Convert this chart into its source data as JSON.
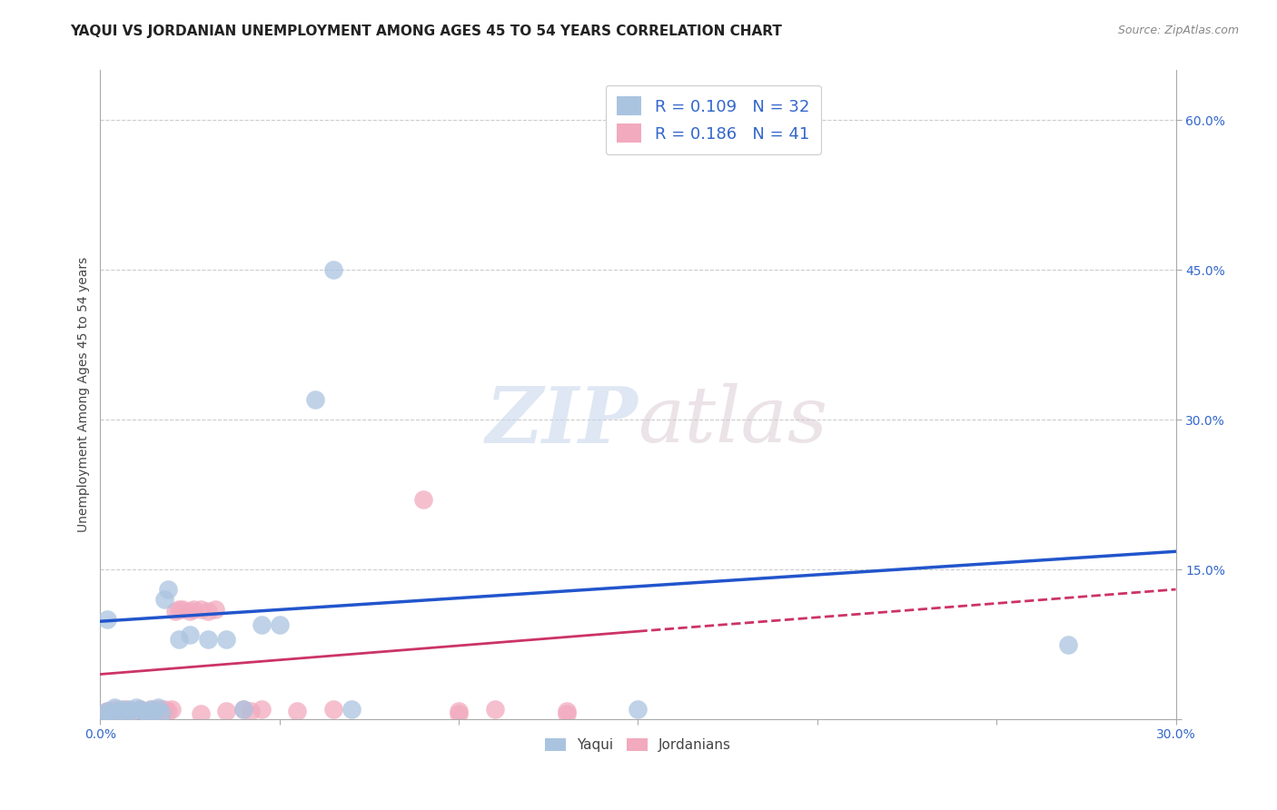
{
  "title": "YAQUI VS JORDANIAN UNEMPLOYMENT AMONG AGES 45 TO 54 YEARS CORRELATION CHART",
  "source": "Source: ZipAtlas.com",
  "ylabel": "Unemployment Among Ages 45 to 54 years",
  "xlim": [
    0.0,
    0.3
  ],
  "ylim": [
    0.0,
    0.65
  ],
  "xticks": [
    0.0,
    0.05,
    0.1,
    0.15,
    0.2,
    0.25,
    0.3
  ],
  "xticklabels": [
    "0.0%",
    "",
    "",
    "",
    "",
    "",
    "30.0%"
  ],
  "yticks": [
    0.0,
    0.15,
    0.3,
    0.45,
    0.6
  ],
  "yticklabels": [
    "",
    "15.0%",
    "30.0%",
    "45.0%",
    "60.0%"
  ],
  "grid_yticks": [
    0.15,
    0.3,
    0.45,
    0.6
  ],
  "yaqui_color": "#aac4e0",
  "jordanian_color": "#f2aabe",
  "yaqui_line_color": "#2255cc",
  "jordanian_line_color": "#cc3366",
  "yaqui_R": 0.109,
  "yaqui_N": 32,
  "jordanian_R": 0.186,
  "jordanian_N": 41,
  "legend_r_color": "#3366cc",
  "background_color": "#ffffff",
  "yaqui_scatter": [
    [
      0.001,
      0.005
    ],
    [
      0.002,
      0.008
    ],
    [
      0.003,
      0.006
    ],
    [
      0.004,
      0.012
    ],
    [
      0.005,
      0.008
    ],
    [
      0.006,
      0.01
    ],
    [
      0.007,
      0.006
    ],
    [
      0.008,
      0.01
    ],
    [
      0.009,
      0.008
    ],
    [
      0.01,
      0.012
    ],
    [
      0.011,
      0.01
    ],
    [
      0.012,
      0.008
    ],
    [
      0.013,
      0.006
    ],
    [
      0.014,
      0.01
    ],
    [
      0.015,
      0.008
    ],
    [
      0.016,
      0.012
    ],
    [
      0.017,
      0.006
    ],
    [
      0.018,
      0.12
    ],
    [
      0.019,
      0.13
    ],
    [
      0.022,
      0.08
    ],
    [
      0.025,
      0.085
    ],
    [
      0.03,
      0.08
    ],
    [
      0.035,
      0.08
    ],
    [
      0.04,
      0.01
    ],
    [
      0.045,
      0.095
    ],
    [
      0.05,
      0.095
    ],
    [
      0.06,
      0.32
    ],
    [
      0.065,
      0.45
    ],
    [
      0.07,
      0.01
    ],
    [
      0.15,
      0.01
    ],
    [
      0.27,
      0.075
    ],
    [
      0.002,
      0.1
    ]
  ],
  "jordanian_scatter": [
    [
      0.001,
      0.005
    ],
    [
      0.002,
      0.008
    ],
    [
      0.003,
      0.006
    ],
    [
      0.004,
      0.01
    ],
    [
      0.005,
      0.008
    ],
    [
      0.006,
      0.006
    ],
    [
      0.007,
      0.01
    ],
    [
      0.008,
      0.008
    ],
    [
      0.009,
      0.006
    ],
    [
      0.01,
      0.008
    ],
    [
      0.011,
      0.01
    ],
    [
      0.012,
      0.008
    ],
    [
      0.013,
      0.006
    ],
    [
      0.014,
      0.01
    ],
    [
      0.015,
      0.008
    ],
    [
      0.016,
      0.01
    ],
    [
      0.017,
      0.008
    ],
    [
      0.018,
      0.01
    ],
    [
      0.019,
      0.008
    ],
    [
      0.02,
      0.01
    ],
    [
      0.021,
      0.108
    ],
    [
      0.022,
      0.11
    ],
    [
      0.023,
      0.11
    ],
    [
      0.025,
      0.108
    ],
    [
      0.026,
      0.11
    ],
    [
      0.028,
      0.11
    ],
    [
      0.03,
      0.108
    ],
    [
      0.032,
      0.11
    ],
    [
      0.035,
      0.008
    ],
    [
      0.04,
      0.01
    ],
    [
      0.042,
      0.008
    ],
    [
      0.045,
      0.01
    ],
    [
      0.055,
      0.008
    ],
    [
      0.065,
      0.01
    ],
    [
      0.09,
      0.22
    ],
    [
      0.1,
      0.008
    ],
    [
      0.11,
      0.01
    ],
    [
      0.13,
      0.008
    ],
    [
      0.1,
      0.005
    ],
    [
      0.13,
      0.005
    ],
    [
      0.028,
      0.005
    ]
  ],
  "yaqui_trendline": [
    [
      0.0,
      0.098
    ],
    [
      0.3,
      0.168
    ]
  ],
  "jordanian_trendline_solid": [
    [
      0.0,
      0.045
    ],
    [
      0.15,
      0.088
    ]
  ],
  "jordanian_trendline_dash": [
    [
      0.15,
      0.088
    ],
    [
      0.3,
      0.13
    ]
  ],
  "watermark_zip": "ZIP",
  "watermark_atlas": "atlas",
  "title_fontsize": 11,
  "axis_label_fontsize": 10,
  "tick_fontsize": 10,
  "legend_fontsize": 13
}
